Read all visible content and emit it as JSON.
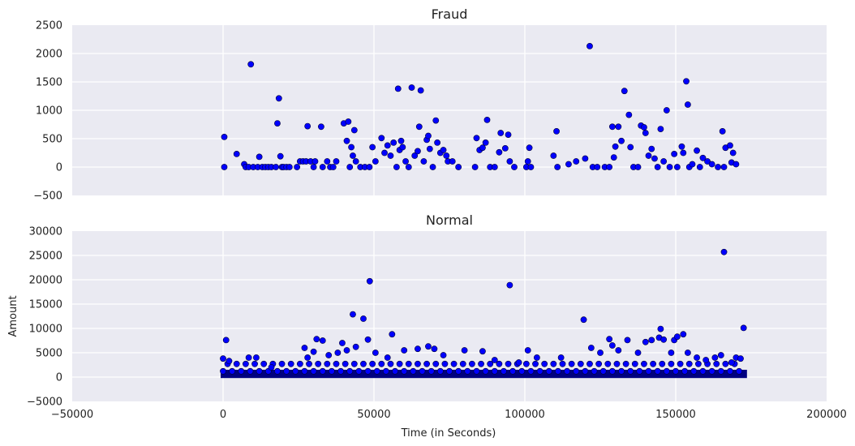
{
  "chart_data": [
    {
      "type": "scatter",
      "title": "Fraud",
      "xlabel": "",
      "ylabel": "",
      "xlim": [
        -50000,
        200000
      ],
      "ylim": [
        -500,
        2500
      ],
      "xticks": [
        "−50000",
        "0",
        "50000",
        "100000",
        "150000",
        "200000"
      ],
      "yticks": [
        "−500",
        "0",
        "500",
        "1000",
        "1500",
        "2000",
        "2500"
      ],
      "ytick_values": [
        -500,
        0,
        500,
        1000,
        1500,
        2000,
        2500
      ],
      "show_xtick_labels": false,
      "grid": true,
      "marker_color": "#0000ff",
      "series": [
        {
          "points": [
            [
              400,
              530
            ],
            [
              400,
              0
            ],
            [
              4500,
              230
            ],
            [
              7000,
              50
            ],
            [
              7500,
              0
            ],
            [
              8500,
              0
            ],
            [
              9200,
              1810
            ],
            [
              10000,
              0
            ],
            [
              11500,
              0
            ],
            [
              12000,
              180
            ],
            [
              13000,
              0
            ],
            [
              14000,
              0
            ],
            [
              15000,
              0
            ],
            [
              16000,
              0
            ],
            [
              17500,
              0
            ],
            [
              18000,
              770
            ],
            [
              18500,
              1210
            ],
            [
              19000,
              190
            ],
            [
              19500,
              0
            ],
            [
              20000,
              0
            ],
            [
              21000,
              0
            ],
            [
              22000,
              0
            ],
            [
              24500,
              0
            ],
            [
              25500,
              100
            ],
            [
              26500,
              100
            ],
            [
              27500,
              100
            ],
            [
              28000,
              720
            ],
            [
              29000,
              100
            ],
            [
              30000,
              0
            ],
            [
              30500,
              100
            ],
            [
              32500,
              710
            ],
            [
              33000,
              0
            ],
            [
              34500,
              100
            ],
            [
              35500,
              0
            ],
            [
              36500,
              0
            ],
            [
              37500,
              100
            ],
            [
              40000,
              770
            ],
            [
              41000,
              460
            ],
            [
              41500,
              800
            ],
            [
              42000,
              0
            ],
            [
              42500,
              350
            ],
            [
              43000,
              200
            ],
            [
              43500,
              650
            ],
            [
              44000,
              100
            ],
            [
              45500,
              0
            ],
            [
              47000,
              0
            ],
            [
              48500,
              0
            ],
            [
              49500,
              350
            ],
            [
              50500,
              100
            ],
            [
              52500,
              510
            ],
            [
              53500,
              250
            ],
            [
              54500,
              380
            ],
            [
              55500,
              200
            ],
            [
              56500,
              430
            ],
            [
              57500,
              0
            ],
            [
              58000,
              1380
            ],
            [
              58500,
              300
            ],
            [
              59000,
              460
            ],
            [
              59500,
              350
            ],
            [
              60500,
              100
            ],
            [
              61500,
              0
            ],
            [
              62500,
              1400
            ],
            [
              63500,
              200
            ],
            [
              64500,
              280
            ],
            [
              65000,
              710
            ],
            [
              65500,
              1350
            ],
            [
              66500,
              100
            ],
            [
              67500,
              480
            ],
            [
              68000,
              550
            ],
            [
              68500,
              320
            ],
            [
              69500,
              0
            ],
            [
              70500,
              820
            ],
            [
              71000,
              430
            ],
            [
              72000,
              250
            ],
            [
              73000,
              300
            ],
            [
              74000,
              200
            ],
            [
              74500,
              100
            ],
            [
              76000,
              100
            ],
            [
              78000,
              0
            ],
            [
              83500,
              0
            ],
            [
              84000,
              510
            ],
            [
              85000,
              300
            ],
            [
              86000,
              340
            ],
            [
              87000,
              430
            ],
            [
              87500,
              830
            ],
            [
              88500,
              0
            ],
            [
              90000,
              0
            ],
            [
              91500,
              260
            ],
            [
              92000,
              600
            ],
            [
              93500,
              330
            ],
            [
              94500,
              570
            ],
            [
              95000,
              100
            ],
            [
              96500,
              0
            ],
            [
              100500,
              0
            ],
            [
              101000,
              100
            ],
            [
              101500,
              340
            ],
            [
              102000,
              0
            ],
            [
              109500,
              200
            ],
            [
              110500,
              630
            ],
            [
              110800,
              0
            ],
            [
              114500,
              50
            ],
            [
              117000,
              100
            ],
            [
              120000,
              150
            ],
            [
              121500,
              2130
            ],
            [
              122500,
              0
            ],
            [
              124000,
              0
            ],
            [
              126500,
              0
            ],
            [
              128000,
              0
            ],
            [
              129000,
              710
            ],
            [
              129500,
              170
            ],
            [
              130000,
              360
            ],
            [
              131000,
              710
            ],
            [
              132000,
              460
            ],
            [
              133000,
              1340
            ],
            [
              134500,
              920
            ],
            [
              135000,
              350
            ],
            [
              136000,
              0
            ],
            [
              137500,
              0
            ],
            [
              138500,
              730
            ],
            [
              139500,
              700
            ],
            [
              140000,
              600
            ],
            [
              141000,
              200
            ],
            [
              142000,
              320
            ],
            [
              143000,
              150
            ],
            [
              144000,
              0
            ],
            [
              145000,
              670
            ],
            [
              146000,
              100
            ],
            [
              147000,
              1000
            ],
            [
              148000,
              0
            ],
            [
              149500,
              230
            ],
            [
              150500,
              0
            ],
            [
              152000,
              360
            ],
            [
              152500,
              250
            ],
            [
              153500,
              1510
            ],
            [
              154000,
              1100
            ],
            [
              154500,
              0
            ],
            [
              155500,
              50
            ],
            [
              157000,
              290
            ],
            [
              158000,
              0
            ],
            [
              159000,
              160
            ],
            [
              160500,
              100
            ],
            [
              162000,
              50
            ],
            [
              164000,
              0
            ],
            [
              165500,
              630
            ],
            [
              166000,
              0
            ],
            [
              166500,
              340
            ],
            [
              168000,
              380
            ],
            [
              168500,
              80
            ],
            [
              169000,
              250
            ],
            [
              170000,
              50
            ]
          ]
        }
      ]
    },
    {
      "type": "scatter",
      "title": "Normal",
      "xlabel": "Time (in Seconds)",
      "ylabel": "Amount",
      "xlim": [
        -50000,
        200000
      ],
      "ylim": [
        -5000,
        30000
      ],
      "xticks": [
        "−50000",
        "0",
        "50000",
        "100000",
        "150000",
        "200000"
      ],
      "yticks": [
        "−5000",
        "0",
        "5000",
        "10000",
        "15000",
        "20000",
        "25000",
        "30000"
      ],
      "ytick_values": [
        -5000,
        0,
        5000,
        10000,
        15000,
        20000,
        25000,
        30000
      ],
      "show_xtick_labels": true,
      "grid": true,
      "marker_color": "#0000ff",
      "series": [
        {
          "points": [
            [
              0,
              3800
            ],
            [
              1000,
              7600
            ],
            [
              2000,
              3300
            ],
            [
              8500,
              4000
            ],
            [
              11000,
              4000
            ],
            [
              16000,
              2000
            ],
            [
              27000,
              6000
            ],
            [
              28000,
              4000
            ],
            [
              30000,
              5200
            ],
            [
              31000,
              7800
            ],
            [
              33000,
              7500
            ],
            [
              35000,
              4500
            ],
            [
              38000,
              5000
            ],
            [
              39500,
              7000
            ],
            [
              41000,
              5500
            ],
            [
              43000,
              12900
            ],
            [
              44000,
              6200
            ],
            [
              46500,
              12000
            ],
            [
              48000,
              7700
            ],
            [
              48600,
              19700
            ],
            [
              50500,
              5000
            ],
            [
              54500,
              4000
            ],
            [
              56000,
              8800
            ],
            [
              60000,
              5500
            ],
            [
              64500,
              5800
            ],
            [
              68000,
              6300
            ],
            [
              70000,
              5800
            ],
            [
              73000,
              4500
            ],
            [
              80000,
              5500
            ],
            [
              86000,
              5300
            ],
            [
              90000,
              3500
            ],
            [
              95000,
              18900
            ],
            [
              98000,
              3000
            ],
            [
              101000,
              5500
            ],
            [
              104000,
              4000
            ],
            [
              112000,
              4000
            ],
            [
              119500,
              11800
            ],
            [
              122000,
              6000
            ],
            [
              125000,
              5000
            ],
            [
              128000,
              7800
            ],
            [
              129000,
              6500
            ],
            [
              131000,
              5500
            ],
            [
              134000,
              7600
            ],
            [
              137500,
              5000
            ],
            [
              140000,
              7200
            ],
            [
              142000,
              7600
            ],
            [
              144500,
              8100
            ],
            [
              145000,
              9900
            ],
            [
              146000,
              7700
            ],
            [
              148500,
              5000
            ],
            [
              149500,
              7600
            ],
            [
              150500,
              8300
            ],
            [
              152500,
              8800
            ],
            [
              154000,
              5000
            ],
            [
              157000,
              4000
            ],
            [
              160000,
              3500
            ],
            [
              163000,
              4000
            ],
            [
              165000,
              4500
            ],
            [
              166000,
              25700
            ],
            [
              168500,
              3000
            ],
            [
              170000,
              4000
            ],
            [
              171500,
              3800
            ],
            [
              172500,
              10100
            ]
          ]
        }
      ]
    }
  ]
}
